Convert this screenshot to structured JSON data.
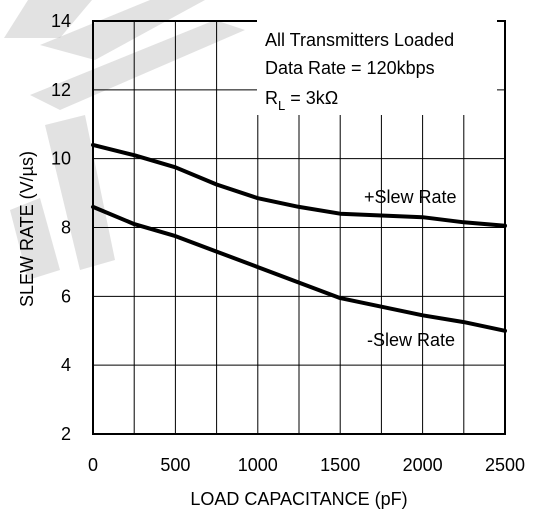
{
  "chart_data": {
    "type": "line",
    "xlabel": "LOAD CAPACITANCE (pF)",
    "ylabel": "SLEW RATE (V/µs)",
    "xlim": [
      0,
      2500
    ],
    "ylim": [
      2,
      14
    ],
    "xticks": [
      0,
      500,
      1000,
      1500,
      2000,
      2500
    ],
    "yticks": [
      2,
      4,
      6,
      8,
      10,
      12,
      14
    ],
    "grid": true,
    "annotation": {
      "line1": "All Transmitters Loaded",
      "line2": "Data Rate = 120kbps",
      "rl_prefix": "R",
      "rl_sub": "L",
      "rl_suffix": " = 3kΩ"
    },
    "series": [
      {
        "name": "+Slew Rate",
        "x": [
          0,
          250,
          500,
          750,
          1000,
          1250,
          1500,
          1750,
          2000,
          2250,
          2500
        ],
        "y": [
          10.4,
          10.1,
          9.75,
          9.25,
          8.85,
          8.6,
          8.4,
          8.35,
          8.3,
          8.15,
          8.05
        ]
      },
      {
        "name": "-Slew Rate",
        "x": [
          0,
          250,
          500,
          750,
          1000,
          1250,
          1500,
          1750,
          2000,
          2250,
          2500
        ],
        "y": [
          8.6,
          8.1,
          7.75,
          7.3,
          6.85,
          6.4,
          5.95,
          5.7,
          5.45,
          5.25,
          5.0
        ]
      }
    ]
  }
}
